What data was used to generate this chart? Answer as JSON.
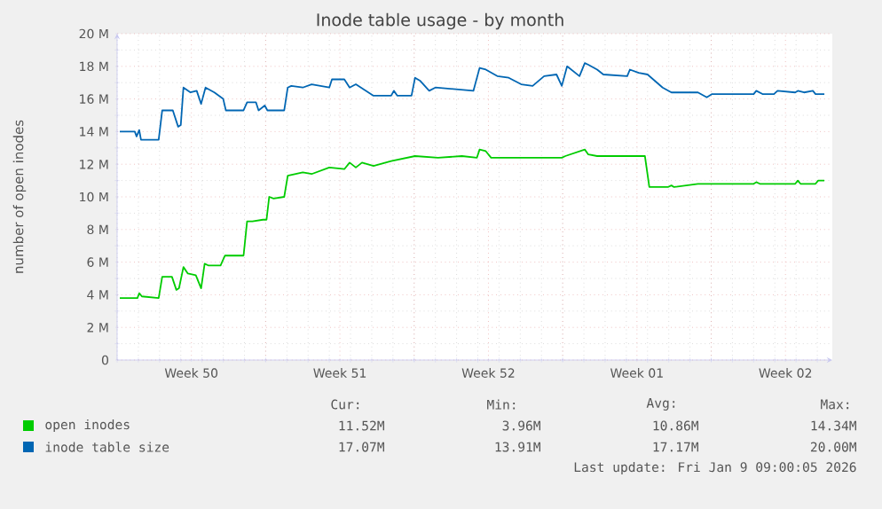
{
  "chart_data": {
    "type": "line",
    "title": "Inode table usage - by month",
    "ylabel": "number of open inodes",
    "xlim": [
      "2025-12-07T00:00",
      "2026-01-09T17:00"
    ],
    "xticks": [
      {
        "value": "2025-12-10T12:00",
        "label": "Week 50"
      },
      {
        "value": "2025-12-14T00:00",
        "label": null
      },
      {
        "value": "2025-12-17T12:00",
        "label": "Week 51"
      },
      {
        "value": "2025-12-21T00:00",
        "label": null
      },
      {
        "value": "2025-12-24T12:00",
        "label": "Week 52"
      },
      {
        "value": "2025-12-28T00:00",
        "label": null
      },
      {
        "value": "2025-12-31T12:00",
        "label": "Week 01"
      },
      {
        "value": "2026-01-04T00:00",
        "label": null
      },
      {
        "value": "2026-01-07T12:00",
        "label": "Week 02"
      }
    ],
    "ylim": [
      0,
      20
    ],
    "yticks": [
      0,
      {
        "value": 2,
        "label": "2 M"
      },
      {
        "value": 4,
        "label": "4 M"
      },
      {
        "value": 6,
        "label": "6 M"
      },
      {
        "value": 8,
        "label": "8 M"
      },
      {
        "value": 10,
        "label": "10 M"
      },
      {
        "value": 12,
        "label": "12 M"
      },
      {
        "value": 14,
        "label": "14 M"
      },
      {
        "value": 16,
        "label": "16 M"
      },
      {
        "value": 18,
        "label": "18 M"
      },
      {
        "value": 20,
        "label": "20 M"
      }
    ],
    "grid": true,
    "legend": "bottom",
    "series": [
      {
        "name": "open inodes",
        "color": "#00cc00",
        "x": [
          "2025-12-07T03:00",
          "2025-12-07T23:00",
          "2025-12-08T01:00",
          "2025-12-08T04:00",
          "2025-12-08T23:00",
          "2025-12-09T03:00",
          "2025-12-09T14:00",
          "2025-12-09T19:00",
          "2025-12-09T22:00",
          "2025-12-10T03:00",
          "2025-12-10T08:00",
          "2025-12-10T17:00",
          "2025-12-10T23:00",
          "2025-12-11T03:00",
          "2025-12-11T07:00",
          "2025-12-11T21:00",
          "2025-12-12T02:00",
          "2025-12-12T23:00",
          "2025-12-13T03:00",
          "2025-12-13T09:00",
          "2025-12-13T21:00",
          "2025-12-14T01:00",
          "2025-12-14T04:00",
          "2025-12-14T09:00",
          "2025-12-14T21:00",
          "2025-12-15T01:00",
          "2025-12-15T18:00",
          "2025-12-16T04:00",
          "2025-12-17T00:00",
          "2025-12-17T17:00",
          "2025-12-17T23:00",
          "2025-12-18T06:00",
          "2025-12-18T13:00",
          "2025-12-19T02:00",
          "2025-12-19T22:00",
          "2025-12-21T01:00",
          "2025-12-22T03:00",
          "2025-12-23T06:00",
          "2025-12-23T23:00",
          "2025-12-24T02:00",
          "2025-12-24T09:00",
          "2025-12-24T15:00",
          "2025-12-27T23:00",
          "2025-12-28T03:00",
          "2025-12-29T01:00",
          "2025-12-29T05:00",
          "2025-12-29T15:00",
          "2025-12-31T21:00",
          "2026-01-01T02:00",
          "2026-01-01T23:00",
          "2026-01-02T03:00",
          "2026-01-02T06:00",
          "2026-01-03T09:00",
          "2026-01-06T00:00",
          "2026-01-06T03:00",
          "2026-01-06T07:00",
          "2026-01-07T23:00",
          "2026-01-08T02:00",
          "2026-01-08T05:00",
          "2026-01-08T22:00",
          "2026-01-09T01:00",
          "2026-01-09T08:00"
        ],
        "values": [
          3.8,
          3.8,
          4.1,
          3.9,
          3.8,
          5.1,
          5.1,
          4.3,
          4.4,
          5.7,
          5.3,
          5.2,
          4.4,
          5.9,
          5.8,
          5.8,
          6.4,
          6.4,
          8.5,
          8.5,
          8.6,
          8.6,
          10.0,
          9.9,
          10.0,
          11.3,
          11.5,
          11.4,
          11.8,
          11.7,
          12.1,
          11.8,
          12.1,
          11.9,
          12.2,
          12.5,
          12.4,
          12.5,
          12.4,
          12.9,
          12.8,
          12.4,
          12.4,
          12.5,
          12.9,
          12.6,
          12.5,
          12.5,
          10.6,
          10.6,
          10.7,
          10.6,
          10.8,
          10.8,
          10.9,
          10.8,
          10.8,
          11.0,
          10.8,
          10.8,
          11.0,
          11.0
        ]
      },
      {
        "name": "inode table size",
        "color": "#0066b3",
        "x": [
          "2025-12-07T03:00",
          "2025-12-07T20:00",
          "2025-12-07T22:00",
          "2025-12-08T01:00",
          "2025-12-08T03:00",
          "2025-12-08T23:00",
          "2025-12-09T03:00",
          "2025-12-09T15:00",
          "2025-12-09T21:00",
          "2025-12-10T00:00",
          "2025-12-10T03:00",
          "2025-12-10T11:00",
          "2025-12-10T18:00",
          "2025-12-10T23:00",
          "2025-12-11T04:00",
          "2025-12-11T14:00",
          "2025-12-12T00:00",
          "2025-12-12T03:00",
          "2025-12-12T23:00",
          "2025-12-13T03:00",
          "2025-12-13T13:00",
          "2025-12-13T16:00",
          "2025-12-13T23:00",
          "2025-12-14T02:00",
          "2025-12-14T21:00",
          "2025-12-15T01:00",
          "2025-12-15T05:00",
          "2025-12-15T18:00",
          "2025-12-16T04:00",
          "2025-12-17T00:00",
          "2025-12-17T03:00",
          "2025-12-17T17:00",
          "2025-12-17T23:00",
          "2025-12-18T06:00",
          "2025-12-19T02:00",
          "2025-12-19T22:00",
          "2025-12-20T01:00",
          "2025-12-20T05:00",
          "2025-12-20T21:00",
          "2025-12-21T01:00",
          "2025-12-21T07:00",
          "2025-12-21T17:00",
          "2025-12-22T00:00",
          "2025-12-23T19:00",
          "2025-12-24T02:00",
          "2025-12-24T09:00",
          "2025-12-24T22:00",
          "2025-12-25T11:00",
          "2025-12-26T01:00",
          "2025-12-26T14:00",
          "2025-12-27T03:00",
          "2025-12-27T17:00",
          "2025-12-27T23:00",
          "2025-12-28T05:00",
          "2025-12-28T19:00",
          "2025-12-29T01:00",
          "2025-12-29T05:00",
          "2025-12-29T15:00",
          "2025-12-29T22:00",
          "2025-12-31T01:00",
          "2025-12-31T04:00",
          "2025-12-31T14:00",
          "2026-01-01T00:00",
          "2026-01-01T17:00",
          "2026-01-02T03:00",
          "2026-01-03T09:00",
          "2026-01-03T19:00",
          "2026-01-04T01:00",
          "2026-01-06T00:00",
          "2026-01-06T03:00",
          "2026-01-06T10:00",
          "2026-01-06T23:00",
          "2026-01-07T03:00",
          "2026-01-07T23:00",
          "2026-01-08T02:00",
          "2026-01-08T09:00",
          "2026-01-08T19:00",
          "2026-01-08T22:00",
          "2026-01-09T08:00"
        ],
        "values": [
          14.0,
          14.0,
          13.7,
          14.1,
          13.5,
          13.5,
          15.3,
          15.3,
          14.3,
          14.4,
          16.7,
          16.4,
          16.5,
          15.7,
          16.7,
          16.4,
          16.0,
          15.3,
          15.3,
          15.8,
          15.8,
          15.3,
          15.6,
          15.3,
          15.3,
          16.7,
          16.8,
          16.7,
          16.9,
          16.7,
          17.2,
          17.2,
          16.7,
          16.9,
          16.2,
          16.2,
          16.5,
          16.2,
          16.2,
          17.3,
          17.1,
          16.5,
          16.7,
          16.5,
          17.9,
          17.8,
          17.4,
          17.3,
          16.9,
          16.8,
          17.4,
          17.5,
          16.8,
          18.0,
          17.4,
          18.2,
          18.1,
          17.8,
          17.5,
          17.4,
          17.8,
          17.6,
          17.5,
          16.7,
          16.4,
          16.4,
          16.1,
          16.3,
          16.3,
          16.5,
          16.3,
          16.3,
          16.5,
          16.4,
          16.5,
          16.4,
          16.5,
          16.3,
          16.3
        ]
      }
    ],
    "annotations": [
      "Cur:",
      "Min:",
      "Avg:",
      "Max:",
      "11.52M",
      "3.96M",
      "10.86M",
      "14.34M",
      "17.07M",
      "13.91M",
      "17.17M",
      "20.00M",
      "Last update: Fri Jan  9 09:00:05 2026"
    ]
  }
}
